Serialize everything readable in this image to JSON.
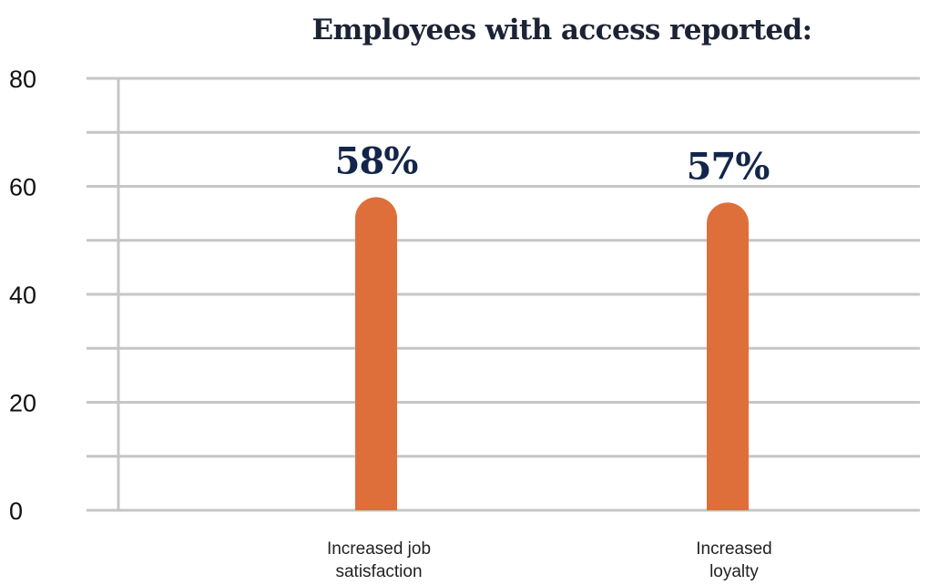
{
  "chart_data": {
    "type": "bar",
    "title": "Employees with access reported:",
    "categories": [
      [
        "Increased job",
        "satisfaction"
      ],
      [
        "Increased",
        "loyalty"
      ]
    ],
    "values": [
      58,
      57
    ],
    "data_labels": [
      "58%",
      "57%"
    ],
    "yticks": [
      "0",
      "20",
      "40",
      "60",
      "80"
    ],
    "ylim": [
      0,
      80
    ],
    "grid": true,
    "bar_color": "#df6f3a",
    "grid_color": "#c6c6c6",
    "label_color": "#13264a"
  }
}
